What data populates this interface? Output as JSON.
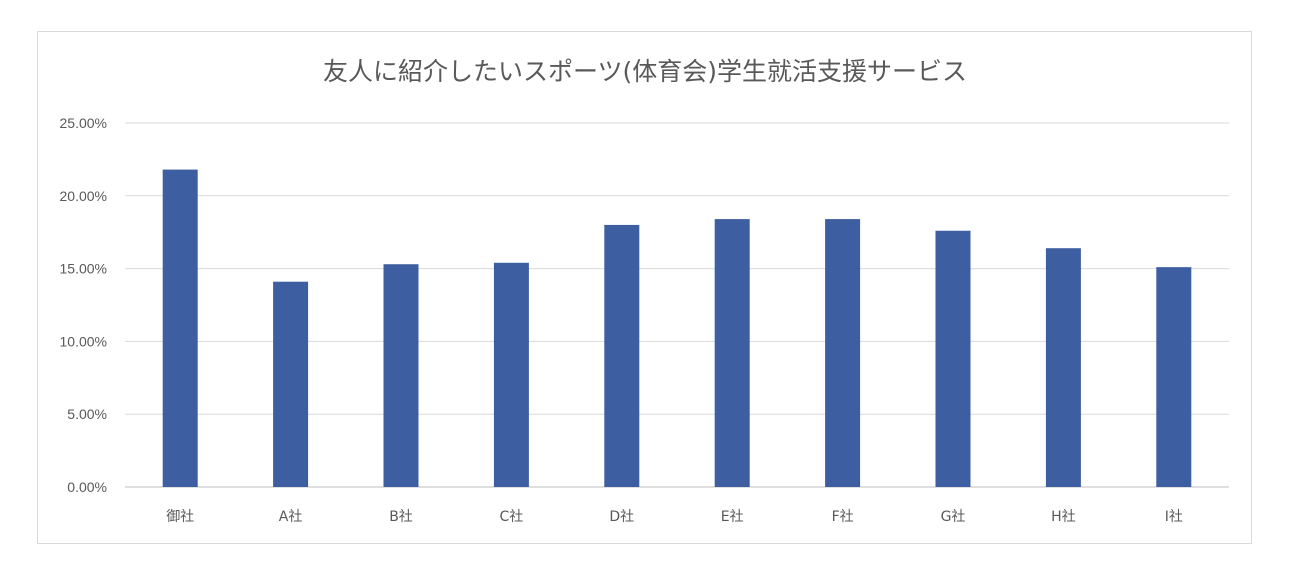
{
  "chart_data": {
    "type": "bar",
    "title": "友人に紹介したいスポーツ(体育会)学生就活支援サービス",
    "categories": [
      "御社",
      "A社",
      "B社",
      "C社",
      "D社",
      "E社",
      "F社",
      "G社",
      "H社",
      "I社"
    ],
    "values": [
      21.8,
      14.1,
      15.3,
      15.4,
      18.0,
      18.4,
      18.4,
      17.6,
      16.4,
      15.1
    ],
    "ylim": [
      0,
      25
    ],
    "yticks": [
      0,
      5,
      10,
      15,
      20,
      25
    ],
    "ytick_labels": [
      "0.00%",
      "5.00%",
      "10.00%",
      "15.00%",
      "20.00%",
      "25.00%"
    ],
    "grid": true,
    "legend": "none",
    "bar_color": "#3d5ea1"
  }
}
